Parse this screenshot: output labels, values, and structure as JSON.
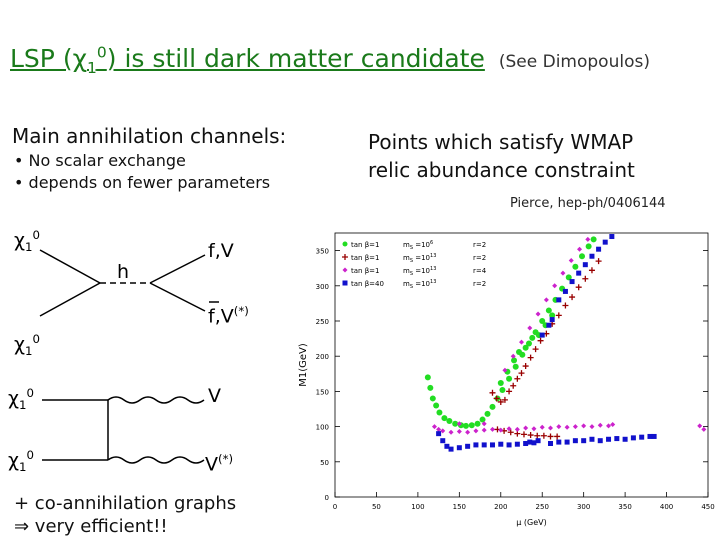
{
  "title": {
    "main": "LSP (χ",
    "sub": "1",
    "sup": "0",
    "rest": ") is still dark matter candidate",
    "note": "(See Dimopoulos)"
  },
  "channels": {
    "heading": "Main annihilation channels:",
    "bullets": [
      "No scalar exchange",
      "depends on fewer parameters"
    ]
  },
  "diagram1": {
    "in_top": "χ",
    "in_top_sub": "1",
    "in_top_sup": "0",
    "in_bottom": "χ",
    "in_bottom_sub": "1",
    "in_bottom_sup": "0",
    "mediator": "h",
    "out_top": "f,V",
    "out_bottom": "f,V",
    "out_bottom_sup": "(*)"
  },
  "diagram2": {
    "in_top": "χ",
    "in_top_sub": "1",
    "in_top_sup": "0",
    "in_bottom": "χ",
    "in_bottom_sub": "1",
    "in_bottom_sup": "0",
    "out_top": "V",
    "out_bottom": "V",
    "out_bottom_sup": "(*)"
  },
  "coannihilation": {
    "line1": "+ co-annihilation graphs",
    "line2": "⇒ very efficient!!"
  },
  "wmap": {
    "line1": "Points which satisfy WMAP",
    "line2": "relic abundance constraint",
    "citation": "Pierce, hep-ph/0406144"
  },
  "colors": {
    "title": "#1a7a1a",
    "series_green": "#22dd22",
    "series_darkred": "#990000",
    "series_magenta": "#cc22cc",
    "series_blue": "#1111cc"
  },
  "chart_data": {
    "type": "scatter",
    "xlabel": "μ (GeV)",
    "ylabel": "M1(GeV)",
    "xlim": [
      0,
      450
    ],
    "ylim": [
      0,
      375
    ],
    "xticks": [
      "0",
      "50",
      "100",
      "150",
      "200",
      "250",
      "300",
      "350",
      "400",
      "450"
    ],
    "yticks": [
      "0",
      "50",
      "100",
      "150",
      "200",
      "250",
      "300",
      "350"
    ],
    "legend_position": "top-left",
    "legend": [
      {
        "tan": "tan β=1",
        "ms": "m",
        "ms_sub": "S",
        "ms_val": "=10",
        "ms_exp": "6",
        "r": "r=2",
        "color": "series_green"
      },
      {
        "tan": "tan β=1",
        "ms": "m",
        "ms_sub": "S",
        "ms_val": "=10",
        "ms_exp": "13",
        "r": "r=2",
        "color": "series_darkred"
      },
      {
        "tan": "tan β=1",
        "ms": "m",
        "ms_sub": "S",
        "ms_val": "=10",
        "ms_exp": "13",
        "r": "r=4",
        "color": "series_magenta"
      },
      {
        "tan": "tan β=40",
        "ms": "m",
        "ms_sub": "S",
        "ms_val": "=10",
        "ms_exp": "13",
        "r": "r=2",
        "color": "series_blue"
      }
    ],
    "series": [
      {
        "color": "series_green",
        "marker": "circle",
        "points": [
          [
            112,
            170
          ],
          [
            115,
            155
          ],
          [
            118,
            140
          ],
          [
            122,
            130
          ],
          [
            126,
            120
          ],
          [
            132,
            112
          ],
          [
            138,
            108
          ],
          [
            145,
            104
          ],
          [
            152,
            102
          ],
          [
            158,
            101
          ],
          [
            165,
            102
          ],
          [
            172,
            104
          ],
          [
            178,
            110
          ],
          [
            184,
            118
          ],
          [
            190,
            128
          ],
          [
            196,
            140
          ],
          [
            202,
            152
          ],
          [
            210,
            168
          ],
          [
            218,
            185
          ],
          [
            226,
            202
          ],
          [
            234,
            218
          ],
          [
            242,
            234
          ],
          [
            250,
            250
          ],
          [
            258,
            265
          ],
          [
            266,
            280
          ],
          [
            274,
            296
          ],
          [
            282,
            312
          ],
          [
            290,
            327
          ],
          [
            298,
            342
          ],
          [
            306,
            356
          ],
          [
            312,
            366
          ],
          [
            246,
            230
          ],
          [
            254,
            244
          ],
          [
            262,
            258
          ],
          [
            200,
            162
          ],
          [
            208,
            178
          ],
          [
            216,
            194
          ],
          [
            222,
            206
          ],
          [
            230,
            212
          ],
          [
            238,
            226
          ]
        ]
      },
      {
        "color": "series_darkred",
        "marker": "plus",
        "points": [
          [
            190,
            148
          ],
          [
            195,
            140
          ],
          [
            200,
            135
          ],
          [
            205,
            138
          ],
          [
            210,
            150
          ],
          [
            215,
            158
          ],
          [
            220,
            168
          ],
          [
            225,
            176
          ],
          [
            230,
            186
          ],
          [
            236,
            198
          ],
          [
            242,
            210
          ],
          [
            248,
            222
          ],
          [
            255,
            232
          ],
          [
            262,
            246
          ],
          [
            270,
            258
          ],
          [
            278,
            272
          ],
          [
            286,
            284
          ],
          [
            294,
            298
          ],
          [
            302,
            310
          ],
          [
            310,
            322
          ],
          [
            318,
            335
          ],
          [
            196,
            96
          ],
          [
            204,
            94
          ],
          [
            212,
            92
          ],
          [
            220,
            90
          ],
          [
            228,
            89
          ],
          [
            236,
            88
          ],
          [
            244,
            87
          ],
          [
            252,
            87
          ],
          [
            260,
            86
          ],
          [
            268,
            86
          ]
        ]
      },
      {
        "color": "series_magenta",
        "marker": "diamond",
        "points": [
          [
            120,
            100
          ],
          [
            125,
            96
          ],
          [
            130,
            94
          ],
          [
            140,
            92
          ],
          [
            150,
            93
          ],
          [
            160,
            92
          ],
          [
            170,
            94
          ],
          [
            180,
            95
          ],
          [
            190,
            96
          ],
          [
            200,
            95
          ],
          [
            210,
            97
          ],
          [
            220,
            96
          ],
          [
            230,
            98
          ],
          [
            240,
            97
          ],
          [
            250,
            99
          ],
          [
            260,
            98
          ],
          [
            270,
            100
          ],
          [
            280,
            99
          ],
          [
            290,
            100
          ],
          [
            300,
            101
          ],
          [
            310,
            100
          ],
          [
            320,
            102
          ],
          [
            330,
            101
          ],
          [
            335,
            103
          ],
          [
            150,
            104
          ],
          [
            180,
            104
          ],
          [
            205,
            180
          ],
          [
            215,
            200
          ],
          [
            225,
            220
          ],
          [
            235,
            240
          ],
          [
            245,
            260
          ],
          [
            255,
            280
          ],
          [
            265,
            300
          ],
          [
            275,
            318
          ],
          [
            285,
            336
          ],
          [
            295,
            352
          ],
          [
            305,
            366
          ],
          [
            440,
            101
          ],
          [
            445,
            96
          ]
        ]
      },
      {
        "color": "series_blue",
        "marker": "square",
        "points": [
          [
            125,
            90
          ],
          [
            130,
            80
          ],
          [
            135,
            72
          ],
          [
            140,
            68
          ],
          [
            150,
            70
          ],
          [
            160,
            72
          ],
          [
            170,
            74
          ],
          [
            180,
            74
          ],
          [
            190,
            74
          ],
          [
            200,
            75
          ],
          [
            210,
            74
          ],
          [
            220,
            75
          ],
          [
            230,
            76
          ],
          [
            235,
            78
          ],
          [
            240,
            77
          ],
          [
            245,
            80
          ],
          [
            260,
            76
          ],
          [
            270,
            78
          ],
          [
            280,
            78
          ],
          [
            290,
            80
          ],
          [
            300,
            80
          ],
          [
            310,
            82
          ],
          [
            320,
            80
          ],
          [
            330,
            82
          ],
          [
            340,
            83
          ],
          [
            350,
            82
          ],
          [
            360,
            84
          ],
          [
            370,
            85
          ],
          [
            380,
            86
          ],
          [
            385,
            86
          ],
          [
            270,
            280
          ],
          [
            278,
            292
          ],
          [
            286,
            306
          ],
          [
            294,
            318
          ],
          [
            302,
            330
          ],
          [
            310,
            342
          ],
          [
            318,
            352
          ],
          [
            326,
            362
          ],
          [
            334,
            370
          ],
          [
            250,
            230
          ],
          [
            258,
            244
          ],
          [
            262,
            252
          ]
        ]
      }
    ]
  }
}
